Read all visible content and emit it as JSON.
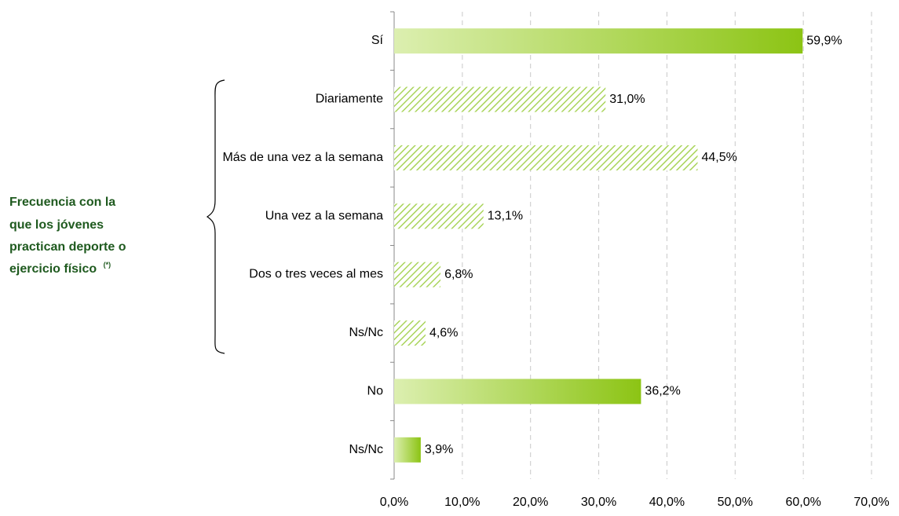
{
  "chart_data": {
    "type": "bar",
    "orientation": "horizontal",
    "categories": [
      "Sí",
      "Diariamente",
      "Más de una vez a la semana",
      "Una vez a la semana",
      "Dos o tres veces al mes",
      "Ns/Nc",
      "No",
      "Ns/Nc"
    ],
    "values": [
      59.9,
      31.0,
      44.5,
      13.1,
      6.8,
      4.6,
      36.2,
      3.9
    ],
    "value_labels": [
      "59,9%",
      "31,0%",
      "44,5%",
      "13,1%",
      "6,8%",
      "4,6%",
      "36,2%",
      "3,9%"
    ],
    "styles": [
      "gradient",
      "hatched",
      "hatched",
      "hatched",
      "hatched",
      "hatched",
      "gradient",
      "gradient"
    ],
    "colors": {
      "gradient_start": "#dcefb0",
      "gradient_end": "#8cc414",
      "hatch": "#a9d45a"
    },
    "xlim": [
      0,
      70
    ],
    "xticks": [
      {
        "value": 0,
        "label": "0,0%"
      },
      {
        "value": 10,
        "label": "10,0%"
      },
      {
        "value": 20,
        "label": "20,0%"
      },
      {
        "value": 30,
        "label": "30,0%"
      },
      {
        "value": 40,
        "label": "40,0%"
      },
      {
        "value": 50,
        "label": "50,0%"
      },
      {
        "value": 60,
        "label": "60,0%"
      },
      {
        "value": 70,
        "label": "70,0%"
      }
    ],
    "grid": true,
    "annotation": {
      "lines": [
        "Frecuencia con la",
        "que los jóvenes",
        "practican deporte o",
        "ejercicio físico"
      ],
      "note": "(*)"
    }
  }
}
